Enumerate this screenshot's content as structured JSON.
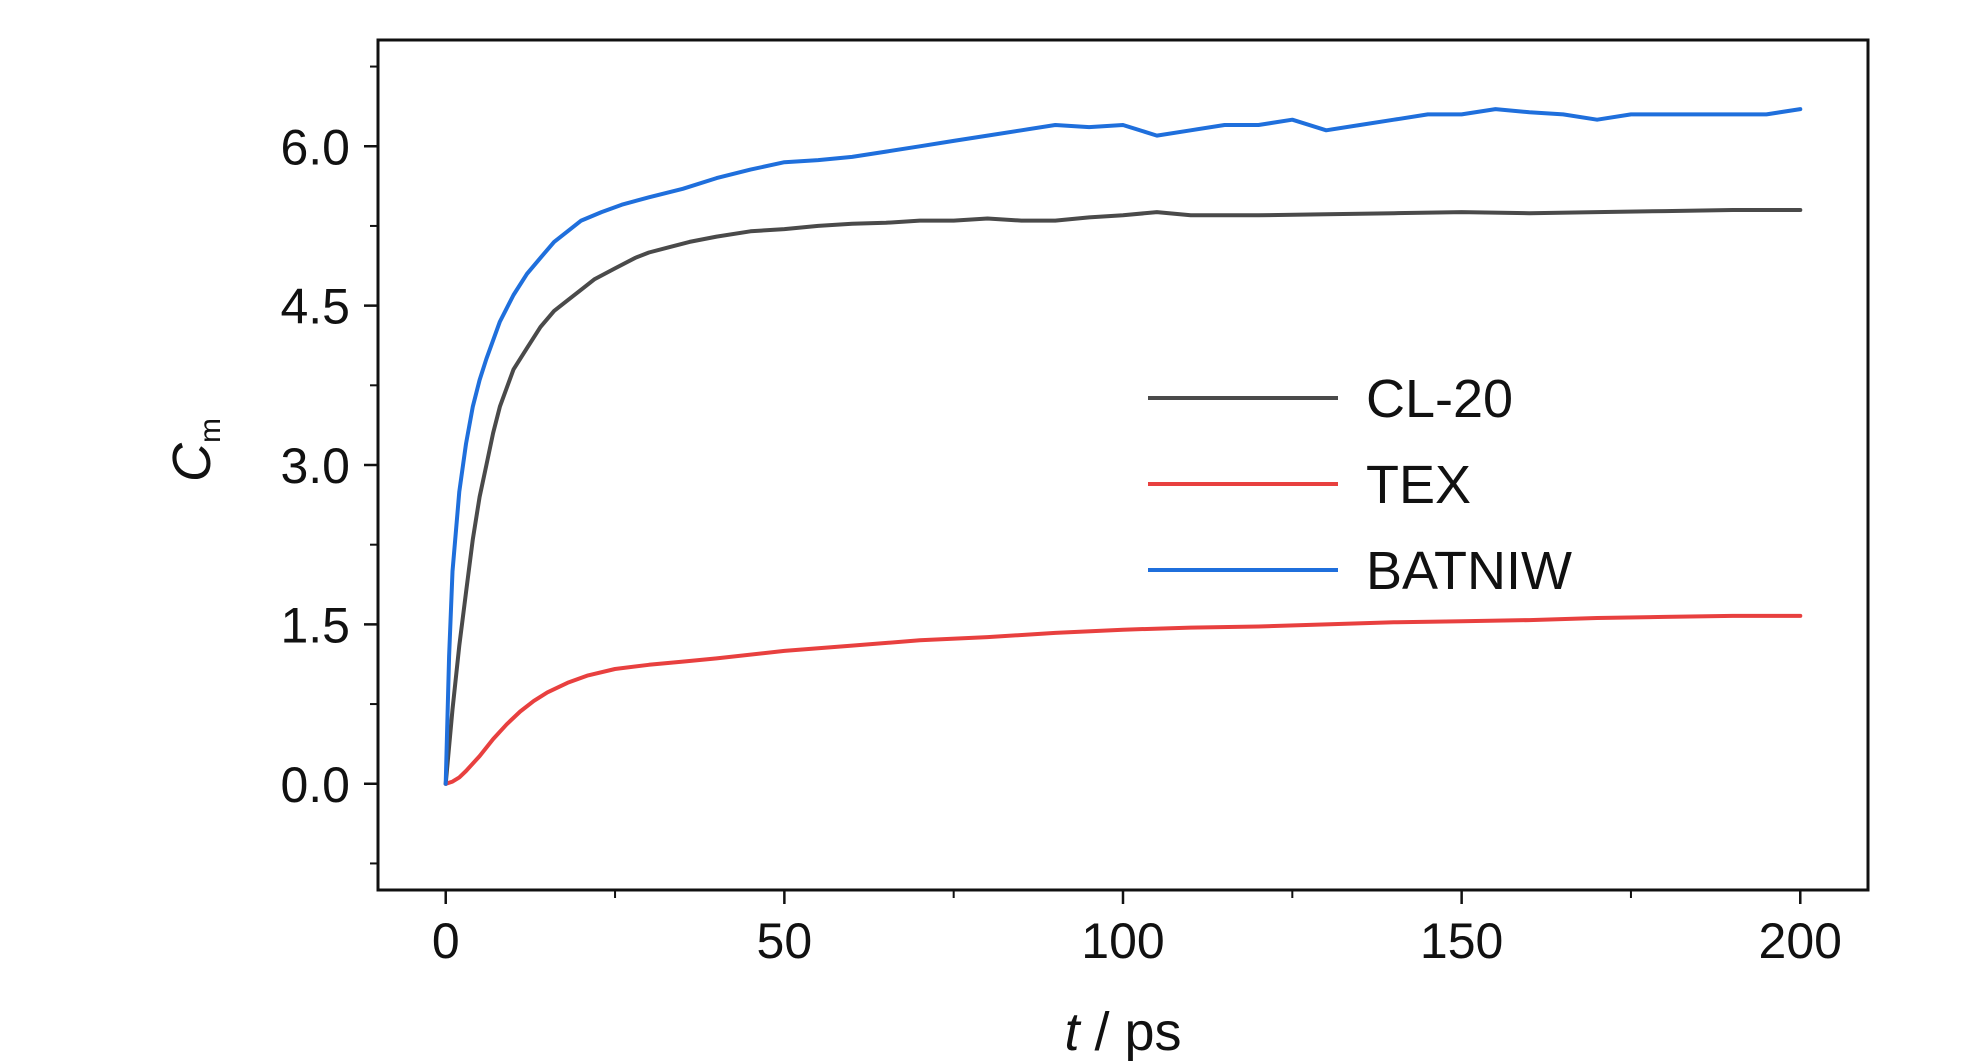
{
  "chart_data": {
    "type": "line",
    "title": "",
    "xlabel_var": "t",
    "xlabel_unit": " / ps",
    "ylabel_var": "C",
    "ylabel_sub": "m",
    "xlim": [
      -10,
      210
    ],
    "ylim": [
      -1.0,
      7.0
    ],
    "xticks": [
      0,
      50,
      100,
      150,
      200
    ],
    "xtick_labels": [
      "0",
      "50",
      "100",
      "150",
      "200"
    ],
    "yticks": [
      0.0,
      1.5,
      3.0,
      4.5,
      6.0
    ],
    "ytick_labels": [
      "0.0",
      "1.5",
      "3.0",
      "4.5",
      "6.0"
    ],
    "grid": false,
    "legend_position": "center-right",
    "series": [
      {
        "name": "CL-20",
        "color": "#4a4a4a",
        "x": [
          0,
          1,
          2,
          3,
          4,
          5,
          6,
          7,
          8,
          10,
          12,
          14,
          16,
          18,
          20,
          22,
          25,
          28,
          30,
          33,
          36,
          40,
          45,
          50,
          55,
          60,
          65,
          70,
          75,
          80,
          85,
          90,
          95,
          100,
          105,
          110,
          120,
          130,
          140,
          150,
          160,
          170,
          180,
          190,
          200
        ],
        "y": [
          0.0,
          0.7,
          1.3,
          1.8,
          2.3,
          2.7,
          3.0,
          3.3,
          3.55,
          3.9,
          4.1,
          4.3,
          4.45,
          4.55,
          4.65,
          4.75,
          4.85,
          4.95,
          5.0,
          5.05,
          5.1,
          5.15,
          5.2,
          5.22,
          5.25,
          5.27,
          5.28,
          5.3,
          5.3,
          5.32,
          5.3,
          5.3,
          5.33,
          5.35,
          5.38,
          5.35,
          5.35,
          5.36,
          5.37,
          5.38,
          5.37,
          5.38,
          5.39,
          5.4,
          5.4
        ]
      },
      {
        "name": "TEX",
        "color": "#e8403f",
        "x": [
          0,
          1,
          2,
          3,
          5,
          7,
          9,
          11,
          13,
          15,
          18,
          21,
          25,
          30,
          35,
          40,
          50,
          60,
          70,
          80,
          90,
          100,
          110,
          120,
          130,
          140,
          150,
          160,
          170,
          180,
          190,
          200
        ],
        "y": [
          0.0,
          0.02,
          0.06,
          0.12,
          0.26,
          0.42,
          0.56,
          0.68,
          0.78,
          0.86,
          0.95,
          1.02,
          1.08,
          1.12,
          1.15,
          1.18,
          1.25,
          1.3,
          1.35,
          1.38,
          1.42,
          1.45,
          1.47,
          1.48,
          1.5,
          1.52,
          1.53,
          1.54,
          1.56,
          1.57,
          1.58,
          1.58
        ]
      },
      {
        "name": "BATNIW",
        "color": "#1f6fdc",
        "x": [
          0,
          0.5,
          1,
          2,
          3,
          4,
          5,
          6,
          8,
          10,
          12,
          14,
          16,
          18,
          20,
          23,
          26,
          30,
          35,
          40,
          45,
          50,
          55,
          60,
          65,
          70,
          75,
          80,
          85,
          90,
          95,
          100,
          105,
          110,
          115,
          120,
          125,
          130,
          135,
          140,
          145,
          150,
          155,
          160,
          165,
          170,
          175,
          180,
          185,
          190,
          195,
          200
        ],
        "y": [
          0.0,
          1.2,
          2.0,
          2.75,
          3.2,
          3.55,
          3.8,
          4.0,
          4.35,
          4.6,
          4.8,
          4.95,
          5.1,
          5.2,
          5.3,
          5.38,
          5.45,
          5.52,
          5.6,
          5.7,
          5.78,
          5.85,
          5.87,
          5.9,
          5.95,
          6.0,
          6.05,
          6.1,
          6.15,
          6.2,
          6.18,
          6.2,
          6.1,
          6.15,
          6.2,
          6.2,
          6.25,
          6.15,
          6.2,
          6.25,
          6.3,
          6.3,
          6.35,
          6.32,
          6.3,
          6.25,
          6.3,
          6.3,
          6.3,
          6.3,
          6.3,
          6.35
        ]
      }
    ]
  }
}
